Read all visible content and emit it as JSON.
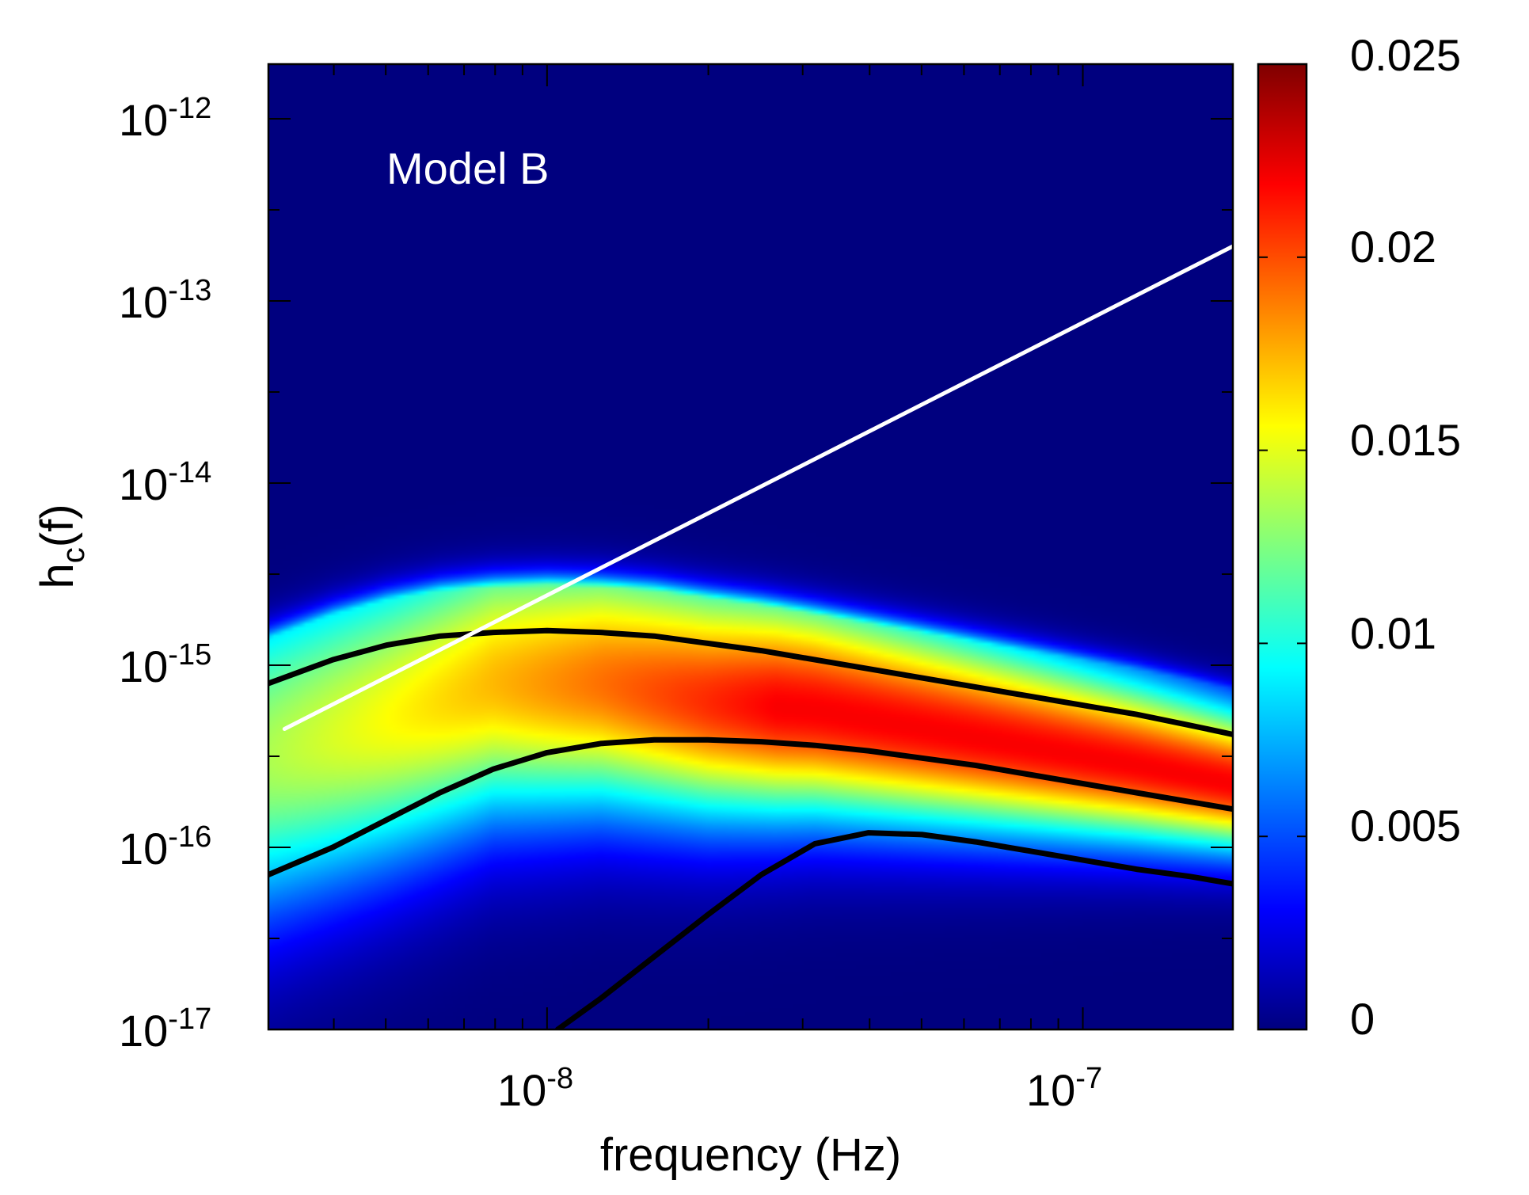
{
  "chart_data": {
    "type": "heatmap",
    "title": "",
    "annotation": "Model B",
    "xlabel": "frequency (Hz)",
    "ylabel_main": "h",
    "ylabel_sub": "c",
    "ylabel_tail": "(f)",
    "x_scale": "log",
    "y_scale": "log",
    "xlim_log10": [
      -8.52,
      -6.72
    ],
    "ylim_log10": [
      -17.0,
      -11.7
    ],
    "x_ticks": [
      {
        "exp": -8,
        "base": "10",
        "sup": "-8"
      },
      {
        "exp": -7,
        "base": "10",
        "sup": "-7"
      }
    ],
    "y_ticks": [
      {
        "exp": -17,
        "base": "10",
        "sup": "-17"
      },
      {
        "exp": -16,
        "base": "10",
        "sup": "-16"
      },
      {
        "exp": -15,
        "base": "10",
        "sup": "-15"
      },
      {
        "exp": -14,
        "base": "10",
        "sup": "-14"
      },
      {
        "exp": -13,
        "base": "10",
        "sup": "-13"
      },
      {
        "exp": -12,
        "base": "10",
        "sup": "-12"
      }
    ],
    "colorbar": {
      "min": 0,
      "max": 0.025,
      "ticks": [
        0,
        0.005,
        0.01,
        0.015,
        0.02,
        0.025
      ],
      "tick_labels": [
        "0",
        "0.005",
        "0.01",
        "0.015",
        "0.02",
        "0.025"
      ],
      "colormap": [
        "#00007f",
        "#0000ff",
        "#007fff",
        "#00ffff",
        "#7fff7f",
        "#ffff00",
        "#ff7f00",
        "#ff0000",
        "#7f0000"
      ]
    },
    "density_ridge_log10": [
      [
        -8.52,
        -15.5
      ],
      [
        -8.3,
        -15.3
      ],
      [
        -8.1,
        -15.1
      ],
      [
        -7.9,
        -15.1
      ],
      [
        -7.7,
        -15.2
      ],
      [
        -7.5,
        -15.25
      ],
      [
        -7.3,
        -15.35
      ],
      [
        -7.1,
        -15.45
      ],
      [
        -6.9,
        -15.55
      ],
      [
        -6.72,
        -15.65
      ]
    ],
    "series": [
      {
        "name": "upper contour",
        "color": "#000000",
        "points_log10": [
          [
            -8.52,
            -15.1
          ],
          [
            -8.4,
            -14.97
          ],
          [
            -8.3,
            -14.89
          ],
          [
            -8.2,
            -14.84
          ],
          [
            -8.1,
            -14.82
          ],
          [
            -8.0,
            -14.81
          ],
          [
            -7.9,
            -14.82
          ],
          [
            -7.8,
            -14.84
          ],
          [
            -7.7,
            -14.88
          ],
          [
            -7.6,
            -14.92
          ],
          [
            -7.5,
            -14.97
          ],
          [
            -7.4,
            -15.02
          ],
          [
            -7.3,
            -15.07
          ],
          [
            -7.2,
            -15.12
          ],
          [
            -7.1,
            -15.17
          ],
          [
            -7.0,
            -15.22
          ],
          [
            -6.9,
            -15.27
          ],
          [
            -6.8,
            -15.33
          ],
          [
            -6.72,
            -15.38
          ]
        ]
      },
      {
        "name": "median contour",
        "color": "#000000",
        "points_log10": [
          [
            -8.52,
            -16.15
          ],
          [
            -8.4,
            -16.0
          ],
          [
            -8.3,
            -15.85
          ],
          [
            -8.2,
            -15.7
          ],
          [
            -8.1,
            -15.57
          ],
          [
            -8.0,
            -15.48
          ],
          [
            -7.9,
            -15.43
          ],
          [
            -7.8,
            -15.41
          ],
          [
            -7.7,
            -15.41
          ],
          [
            -7.6,
            -15.42
          ],
          [
            -7.5,
            -15.44
          ],
          [
            -7.4,
            -15.47
          ],
          [
            -7.3,
            -15.51
          ],
          [
            -7.2,
            -15.55
          ],
          [
            -7.1,
            -15.6
          ],
          [
            -7.0,
            -15.65
          ],
          [
            -6.9,
            -15.7
          ],
          [
            -6.8,
            -15.75
          ],
          [
            -6.72,
            -15.79
          ]
        ]
      },
      {
        "name": "lower contour",
        "color": "#000000",
        "points_log10": [
          [
            -7.98,
            -17.0
          ],
          [
            -7.9,
            -16.83
          ],
          [
            -7.8,
            -16.6
          ],
          [
            -7.7,
            -16.37
          ],
          [
            -7.6,
            -16.15
          ],
          [
            -7.5,
            -15.98
          ],
          [
            -7.4,
            -15.92
          ],
          [
            -7.3,
            -15.93
          ],
          [
            -7.2,
            -15.97
          ],
          [
            -7.1,
            -16.02
          ],
          [
            -7.0,
            -16.07
          ],
          [
            -6.9,
            -16.12
          ],
          [
            -6.8,
            -16.16
          ],
          [
            -6.72,
            -16.2
          ]
        ]
      },
      {
        "name": "sensitivity line",
        "color": "#ffffff",
        "points_log10": [
          [
            -8.49,
            -15.35
          ],
          [
            -6.72,
            -12.7
          ]
        ]
      }
    ]
  }
}
